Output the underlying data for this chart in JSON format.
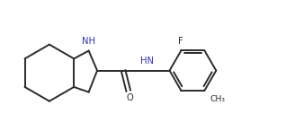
{
  "background": "#ffffff",
  "line_color": "#2b2b2b",
  "label_color_nh": "#3333bb",
  "label_color_black": "#2b2b2b",
  "line_width": 1.4,
  "font_size_label": 7.2,
  "figsize": [
    3.18,
    1.56
  ],
  "dpi": 100,
  "xlim": [
    0,
    10
  ],
  "ylim": [
    0,
    4.9
  ]
}
